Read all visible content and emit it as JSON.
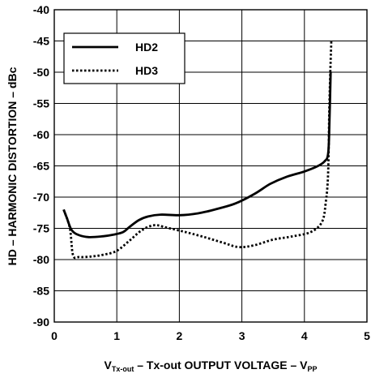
{
  "chart_data": {
    "type": "line",
    "title": "",
    "xlabel": {
      "prefix": "V",
      "prefix_sub": "Tx-out",
      "middle": " – Tx-out OUTPUT VOLTAGE – V",
      "suffix_sub": "PP"
    },
    "ylabel": "HD – HARMONIC DISTORTION – dBc",
    "xlim": [
      0,
      5
    ],
    "ylim": [
      -90,
      -40
    ],
    "xticks": [
      "0",
      "1",
      "2",
      "3",
      "4",
      "5"
    ],
    "yticks": [
      "-40",
      "-45",
      "-50",
      "-55",
      "-60",
      "-65",
      "-70",
      "-75",
      "-80",
      "-85",
      "-90"
    ],
    "grid": true,
    "legend_position": "top-left",
    "series": [
      {
        "name": "HD2",
        "style": "solid",
        "color": "#000000",
        "points": [
          [
            0.15,
            -72.0
          ],
          [
            0.2,
            -73.3
          ],
          [
            0.28,
            -75.3
          ],
          [
            0.4,
            -76.1
          ],
          [
            0.55,
            -76.4
          ],
          [
            0.75,
            -76.3
          ],
          [
            0.95,
            -76.0
          ],
          [
            1.1,
            -75.6
          ],
          [
            1.2,
            -74.8
          ],
          [
            1.35,
            -73.7
          ],
          [
            1.5,
            -73.1
          ],
          [
            1.7,
            -72.8
          ],
          [
            2.0,
            -72.9
          ],
          [
            2.3,
            -72.6
          ],
          [
            2.6,
            -71.9
          ],
          [
            2.9,
            -71.0
          ],
          [
            3.2,
            -69.5
          ],
          [
            3.45,
            -67.9
          ],
          [
            3.7,
            -66.8
          ],
          [
            4.0,
            -65.9
          ],
          [
            4.2,
            -65.1
          ],
          [
            4.32,
            -64.3
          ],
          [
            4.38,
            -63.0
          ],
          [
            4.4,
            -58.0
          ],
          [
            4.42,
            -50.0
          ]
        ]
      },
      {
        "name": "HD3",
        "style": "dotted",
        "color": "#000000",
        "points": [
          [
            0.15,
            -72.0
          ],
          [
            0.25,
            -75.0
          ],
          [
            0.3,
            -79.3
          ],
          [
            0.4,
            -79.6
          ],
          [
            0.6,
            -79.5
          ],
          [
            0.8,
            -79.2
          ],
          [
            1.0,
            -78.6
          ],
          [
            1.2,
            -77.0
          ],
          [
            1.4,
            -75.3
          ],
          [
            1.6,
            -74.5
          ],
          [
            1.8,
            -74.9
          ],
          [
            2.1,
            -75.6
          ],
          [
            2.4,
            -76.4
          ],
          [
            2.7,
            -77.3
          ],
          [
            2.95,
            -78.0
          ],
          [
            3.2,
            -77.7
          ],
          [
            3.5,
            -76.8
          ],
          [
            3.8,
            -76.3
          ],
          [
            4.1,
            -75.6
          ],
          [
            4.28,
            -74.0
          ],
          [
            4.34,
            -71.0
          ],
          [
            4.38,
            -66.0
          ],
          [
            4.4,
            -55.0
          ],
          [
            4.43,
            -45.0
          ]
        ]
      }
    ]
  }
}
